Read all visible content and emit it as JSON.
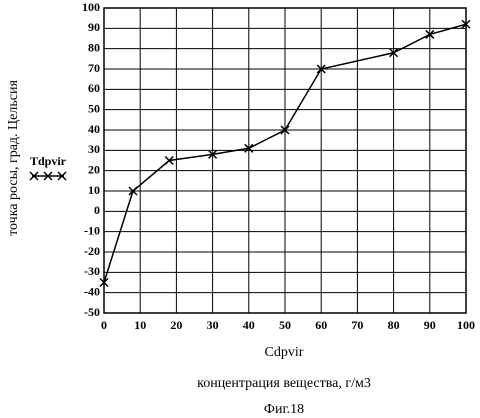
{
  "chart_data": {
    "type": "line",
    "y_label": "точка росы, град. Цельсия",
    "x_label": "Cdpvir",
    "x_description": "концентрация вещества, г/м3",
    "caption": "Фиг.18",
    "x": [
      0,
      8,
      18,
      30,
      40,
      50,
      60,
      80,
      90,
      100
    ],
    "series": [
      {
        "name": "Tdpvir",
        "color": "#000000",
        "marker": "x",
        "values": [
          -35,
          10,
          25,
          28,
          31,
          40,
          70,
          78,
          87,
          92
        ]
      }
    ],
    "xlim": [
      0,
      100
    ],
    "xticks": [
      0,
      10,
      20,
      30,
      40,
      50,
      60,
      70,
      80,
      90,
      100
    ],
    "ylim": [
      -50,
      100
    ],
    "yticks": [
      -50,
      -40,
      -30,
      -20,
      -10,
      0,
      10,
      20,
      30,
      40,
      50,
      60,
      70,
      80,
      90,
      100
    ],
    "grid": true,
    "legend": "left"
  }
}
